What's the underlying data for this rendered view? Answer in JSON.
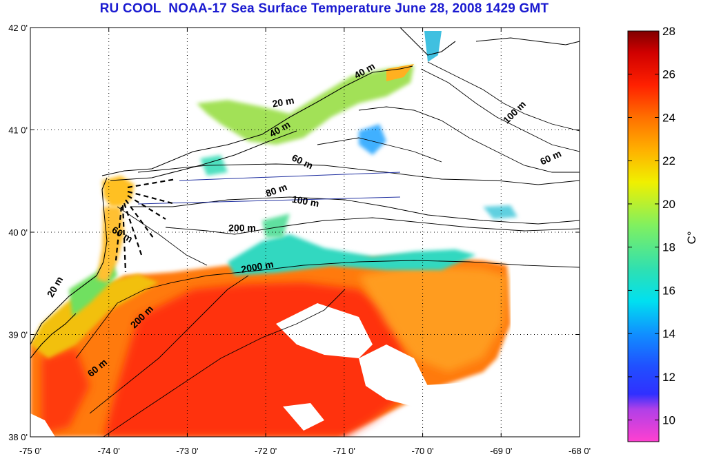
{
  "title": "RU COOL  NOAA-17 Sea Surface Temperature June 28, 2008 1429 GMT",
  "map": {
    "lon_ticks": [
      "-75 0'",
      "-74 0'",
      "-73 0'",
      "-72 0'",
      "-71 0'",
      "-70 0'",
      "-69 0'",
      "-68 0'"
    ],
    "lat_ticks": [
      "38 0'",
      "39 0'",
      "40 0'",
      "41 0'",
      "42 0'"
    ],
    "lon_range": [
      -75,
      -68
    ],
    "lat_range": [
      38,
      42
    ],
    "grid": "dotted"
  },
  "isobath_labels": [
    {
      "text": "20 m",
      "lon": -71.77,
      "lat": 41.24,
      "angle": -10
    },
    {
      "text": "40 m",
      "lon": -70.72,
      "lat": 41.55,
      "angle": -30
    },
    {
      "text": "40 m",
      "lon": -71.8,
      "lat": 40.98,
      "angle": -30
    },
    {
      "text": "100 m",
      "lon": -68.8,
      "lat": 41.15,
      "angle": -45
    },
    {
      "text": "60 m",
      "lon": -68.35,
      "lat": 40.7,
      "angle": -25
    },
    {
      "text": "60 m",
      "lon": -71.55,
      "lat": 40.66,
      "angle": 25
    },
    {
      "text": "80 m",
      "lon": -71.85,
      "lat": 40.38,
      "angle": -20
    },
    {
      "text": "100 m",
      "lon": -71.5,
      "lat": 40.27,
      "angle": 10
    },
    {
      "text": "200 m",
      "lon": -72.3,
      "lat": 40.01,
      "angle": 0
    },
    {
      "text": "60 m",
      "lon": -73.85,
      "lat": 39.95,
      "angle": 30
    },
    {
      "text": "2000 m",
      "lon": -72.1,
      "lat": 39.63,
      "angle": -10
    },
    {
      "text": "20 m",
      "lon": -74.65,
      "lat": 39.45,
      "angle": -60
    },
    {
      "text": "200 m",
      "lon": -73.55,
      "lat": 39.15,
      "angle": -45
    },
    {
      "text": "60 m",
      "lon": -74.12,
      "lat": 38.65,
      "angle": -40
    }
  ],
  "colorbar": {
    "unit": "C°",
    "ticks": [
      "10",
      "12",
      "14",
      "16",
      "18",
      "20",
      "22",
      "24",
      "26",
      "28"
    ],
    "range": [
      9,
      28
    ],
    "stops": [
      {
        "value": 9,
        "color": "#ff40d0"
      },
      {
        "value": 10.5,
        "color": "#b040e8"
      },
      {
        "value": 11.2,
        "color": "#3030ff"
      },
      {
        "value": 12.5,
        "color": "#2050ff"
      },
      {
        "value": 14,
        "color": "#1090ff"
      },
      {
        "value": 15.5,
        "color": "#00e0f0"
      },
      {
        "value": 17,
        "color": "#30e0b0"
      },
      {
        "value": 19,
        "color": "#80f060"
      },
      {
        "value": 21,
        "color": "#f0f000"
      },
      {
        "value": 22.5,
        "color": "#ffb000"
      },
      {
        "value": 24,
        "color": "#ff7000"
      },
      {
        "value": 25.5,
        "color": "#ff2000"
      },
      {
        "value": 27,
        "color": "#d00000"
      },
      {
        "value": 28,
        "color": "#800000"
      }
    ]
  }
}
